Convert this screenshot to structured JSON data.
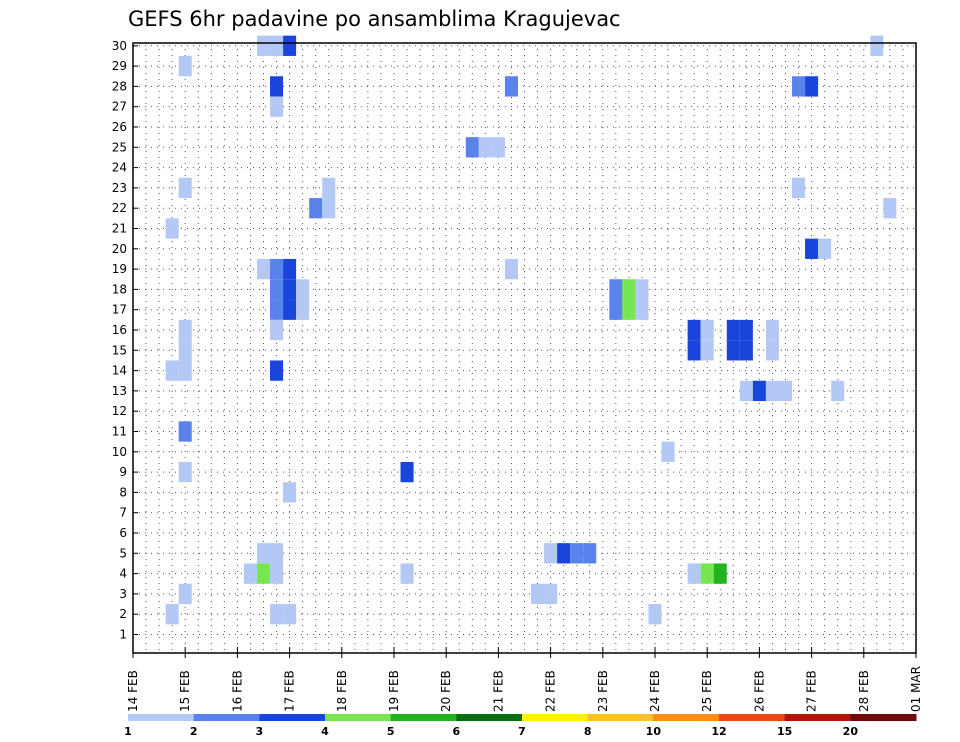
{
  "chart_data": {
    "type": "heatmap",
    "title": "GEFS 6hr padavine po ansamblima Kragujevac",
    "x_tick_labels": [
      "14 FEB",
      "15 FEB",
      "16 FEB",
      "17 FEB",
      "18 FEB",
      "19 FEB",
      "20 FEB",
      "21 FEB",
      "22 FEB",
      "23 FEB",
      "24 FEB",
      "25 FEB",
      "26 FEB",
      "27 FEB",
      "28 FEB",
      "01 MAR"
    ],
    "x_range_days": [
      0,
      15
    ],
    "y_tick_labels": [
      "1",
      "2",
      "3",
      "4",
      "5",
      "6",
      "7",
      "8",
      "9",
      "10",
      "11",
      "12",
      "13",
      "14",
      "15",
      "16",
      "17",
      "18",
      "19",
      "20",
      "21",
      "22",
      "23",
      "24",
      "25",
      "26",
      "27",
      "28",
      "29",
      "30"
    ],
    "y_range": [
      1,
      30
    ],
    "grid": true,
    "time_step_hours": 6,
    "legend": {
      "placement": "bottom",
      "labels": [
        "1",
        "2",
        "3",
        "4",
        "5",
        "6",
        "7",
        "8",
        "10",
        "12",
        "15",
        "20"
      ],
      "colors": [
        "#b4c8f5",
        "#5a82ec",
        "#1a45da",
        "#78e650",
        "#22b41e",
        "#0a6e12",
        "#fff000",
        "#ffbe32",
        "#ff8c14",
        "#eb4614",
        "#b4140a",
        "#6e0a0a"
      ]
    },
    "cells": [
      {
        "member": 30,
        "day": 2.5,
        "value": 1
      },
      {
        "member": 30,
        "day": 2.75,
        "value": 1
      },
      {
        "member": 30,
        "day": 3.0,
        "value": 3
      },
      {
        "member": 30,
        "day": 14.25,
        "value": 1
      },
      {
        "member": 29,
        "day": 1.0,
        "value": 1
      },
      {
        "member": 28,
        "day": 2.75,
        "value": 3
      },
      {
        "member": 28,
        "day": 7.25,
        "value": 2
      },
      {
        "member": 28,
        "day": 12.75,
        "value": 2
      },
      {
        "member": 28,
        "day": 13.0,
        "value": 3
      },
      {
        "member": 27,
        "day": 2.75,
        "value": 1
      },
      {
        "member": 25,
        "day": 6.5,
        "value": 2
      },
      {
        "member": 25,
        "day": 6.75,
        "value": 1
      },
      {
        "member": 25,
        "day": 7.0,
        "value": 1
      },
      {
        "member": 23,
        "day": 1.0,
        "value": 1
      },
      {
        "member": 23,
        "day": 3.75,
        "value": 1
      },
      {
        "member": 23,
        "day": 12.75,
        "value": 1
      },
      {
        "member": 22,
        "day": 3.5,
        "value": 2
      },
      {
        "member": 22,
        "day": 3.75,
        "value": 1
      },
      {
        "member": 22,
        "day": 14.5,
        "value": 1
      },
      {
        "member": 21,
        "day": 0.75,
        "value": 1
      },
      {
        "member": 20,
        "day": 13.0,
        "value": 3
      },
      {
        "member": 20,
        "day": 13.25,
        "value": 1
      },
      {
        "member": 19,
        "day": 2.5,
        "value": 1
      },
      {
        "member": 19,
        "day": 2.75,
        "value": 2
      },
      {
        "member": 19,
        "day": 3.0,
        "value": 3
      },
      {
        "member": 19,
        "day": 7.25,
        "value": 1
      },
      {
        "member": 18,
        "day": 2.75,
        "value": 2
      },
      {
        "member": 18,
        "day": 3.0,
        "value": 3
      },
      {
        "member": 18,
        "day": 3.25,
        "value": 1
      },
      {
        "member": 18,
        "day": 9.25,
        "value": 2
      },
      {
        "member": 18,
        "day": 9.5,
        "value": 4
      },
      {
        "member": 18,
        "day": 9.75,
        "value": 1
      },
      {
        "member": 17,
        "day": 2.75,
        "value": 2
      },
      {
        "member": 17,
        "day": 3.0,
        "value": 3
      },
      {
        "member": 17,
        "day": 3.25,
        "value": 1
      },
      {
        "member": 17,
        "day": 9.25,
        "value": 2
      },
      {
        "member": 17,
        "day": 9.5,
        "value": 4
      },
      {
        "member": 17,
        "day": 9.75,
        "value": 1
      },
      {
        "member": 16,
        "day": 2.75,
        "value": 1
      },
      {
        "member": 16,
        "day": 1.0,
        "value": 1
      },
      {
        "member": 16,
        "day": 10.75,
        "value": 3
      },
      {
        "member": 16,
        "day": 11.0,
        "value": 1
      },
      {
        "member": 16,
        "day": 11.5,
        "value": 3
      },
      {
        "member": 16,
        "day": 11.75,
        "value": 3
      },
      {
        "member": 16,
        "day": 12.25,
        "value": 1
      },
      {
        "member": 15,
        "day": 1.0,
        "value": 1
      },
      {
        "member": 15,
        "day": 10.75,
        "value": 3
      },
      {
        "member": 15,
        "day": 11.0,
        "value": 1
      },
      {
        "member": 15,
        "day": 11.5,
        "value": 3
      },
      {
        "member": 15,
        "day": 11.75,
        "value": 3
      },
      {
        "member": 15,
        "day": 12.25,
        "value": 1
      },
      {
        "member": 14,
        "day": 0.75,
        "value": 1
      },
      {
        "member": 14,
        "day": 1.0,
        "value": 1
      },
      {
        "member": 14,
        "day": 2.75,
        "value": 3
      },
      {
        "member": 13,
        "day": 11.75,
        "value": 1
      },
      {
        "member": 13,
        "day": 12.0,
        "value": 3
      },
      {
        "member": 13,
        "day": 12.25,
        "value": 1
      },
      {
        "member": 13,
        "day": 12.5,
        "value": 1
      },
      {
        "member": 13,
        "day": 13.5,
        "value": 1
      },
      {
        "member": 11,
        "day": 1.0,
        "value": 2
      },
      {
        "member": 10,
        "day": 10.25,
        "value": 1
      },
      {
        "member": 9,
        "day": 1.0,
        "value": 1
      },
      {
        "member": 9,
        "day": 5.25,
        "value": 3
      },
      {
        "member": 8,
        "day": 3.0,
        "value": 1
      },
      {
        "member": 5,
        "day": 2.5,
        "value": 1
      },
      {
        "member": 5,
        "day": 2.75,
        "value": 1
      },
      {
        "member": 5,
        "day": 8.0,
        "value": 1
      },
      {
        "member": 5,
        "day": 8.25,
        "value": 3
      },
      {
        "member": 5,
        "day": 8.5,
        "value": 2
      },
      {
        "member": 5,
        "day": 8.75,
        "value": 2
      },
      {
        "member": 4,
        "day": 2.25,
        "value": 1
      },
      {
        "member": 4,
        "day": 2.5,
        "value": 4
      },
      {
        "member": 4,
        "day": 2.75,
        "value": 1
      },
      {
        "member": 4,
        "day": 5.25,
        "value": 1
      },
      {
        "member": 4,
        "day": 10.75,
        "value": 1
      },
      {
        "member": 4,
        "day": 11.0,
        "value": 4
      },
      {
        "member": 4,
        "day": 11.25,
        "value": 5
      },
      {
        "member": 3,
        "day": 1.0,
        "value": 1
      },
      {
        "member": 3,
        "day": 7.75,
        "value": 1
      },
      {
        "member": 3,
        "day": 8.0,
        "value": 1
      },
      {
        "member": 2,
        "day": 0.75,
        "value": 1
      },
      {
        "member": 2,
        "day": 2.75,
        "value": 1
      },
      {
        "member": 2,
        "day": 3.0,
        "value": 1
      },
      {
        "member": 2,
        "day": 10.0,
        "value": 1
      }
    ]
  }
}
